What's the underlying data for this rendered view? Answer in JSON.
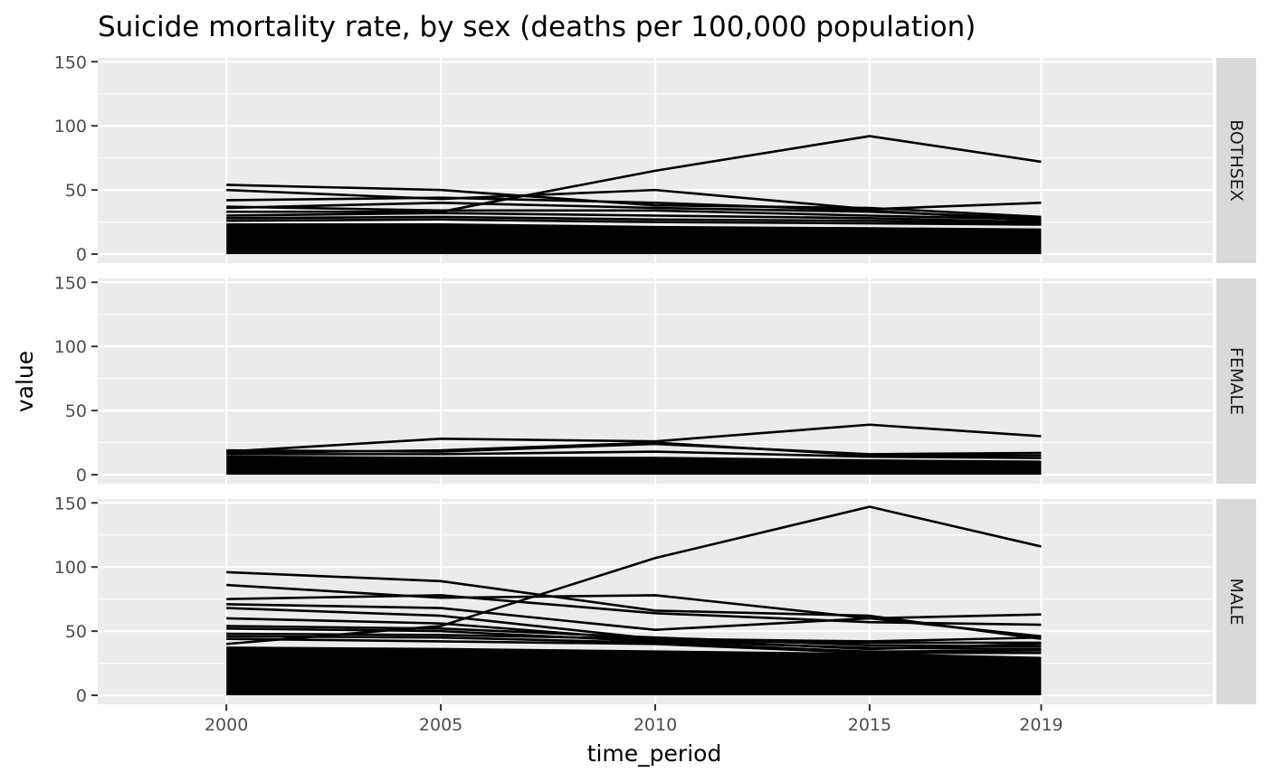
{
  "chart_data": {
    "type": "line",
    "title": "Suicide mortality rate, by sex (deaths per 100,000 population)",
    "xlabel": "time_period",
    "ylabel": "value",
    "x": [
      2000,
      2005,
      2010,
      2015,
      2019
    ],
    "x_tick_labels": [
      "2000",
      "2005",
      "2010",
      "2015",
      "2019"
    ],
    "xlim": [
      1997,
      2023
    ],
    "ylim": [
      -7,
      153
    ],
    "y_ticks": [
      0,
      50,
      100,
      150
    ],
    "y_tick_labels": [
      "0",
      "50",
      "100",
      "150"
    ],
    "grid": true,
    "legend": "none",
    "line_color": "#000000",
    "facets": [
      {
        "label": "BOTHSEX",
        "band_upper": [
          24,
          24,
          22,
          21,
          20
        ],
        "series": [
          {
            "values": [
              33,
              33,
              65,
              92,
              72
            ]
          },
          {
            "values": [
              54,
              50,
              38,
              36,
              29
            ]
          },
          {
            "values": [
              50,
              43,
              50,
              35,
              40
            ]
          },
          {
            "values": [
              42,
              44,
              40,
              34,
              26
            ]
          },
          {
            "values": [
              36,
              40,
              36,
              33,
              28
            ]
          },
          {
            "values": [
              37,
              34,
              34,
              30,
              27
            ]
          },
          {
            "values": [
              30,
              32,
              30,
              28,
              25
            ]
          },
          {
            "values": [
              28,
              29,
              27,
              26,
              24
            ]
          },
          {
            "values": [
              26,
              27,
              25,
              24,
              23
            ]
          }
        ]
      },
      {
        "label": "FEMALE",
        "band_upper": [
          15,
          14,
          14,
          12,
          11
        ],
        "series": [
          {
            "values": [
              18,
              28,
              26,
              39,
              30
            ]
          },
          {
            "values": [
              19,
              18,
              24,
              16,
              17
            ]
          },
          {
            "values": [
              17,
              19,
              25,
              15,
              15
            ]
          },
          {
            "values": [
              16,
              16,
              18,
              14,
              13
            ]
          }
        ]
      },
      {
        "label": "MALE",
        "band_upper": [
          38,
          37,
          35,
          33,
          30
        ],
        "series": [
          {
            "values": [
              40,
              54,
              107,
              147,
              116
            ]
          },
          {
            "values": [
              96,
              89,
              66,
              62,
              44
            ]
          },
          {
            "values": [
              86,
              76,
              78,
              60,
              63
            ]
          },
          {
            "values": [
              75,
              78,
              64,
              57,
              55
            ]
          },
          {
            "values": [
              71,
              68,
              51,
              60,
              46
            ]
          },
          {
            "values": [
              68,
              62,
              44,
              42,
              45
            ]
          },
          {
            "values": [
              60,
              56,
              43,
              41,
              41
            ]
          },
          {
            "values": [
              54,
              52,
              45,
              39,
              38
            ]
          },
          {
            "values": [
              52,
              50,
              42,
              37,
              36
            ]
          },
          {
            "values": [
              48,
              47,
              44,
              36,
              40
            ]
          },
          {
            "values": [
              46,
              45,
              41,
              34,
              35
            ]
          },
          {
            "values": [
              44,
              42,
              40,
              33,
              33
            ]
          }
        ]
      }
    ]
  }
}
